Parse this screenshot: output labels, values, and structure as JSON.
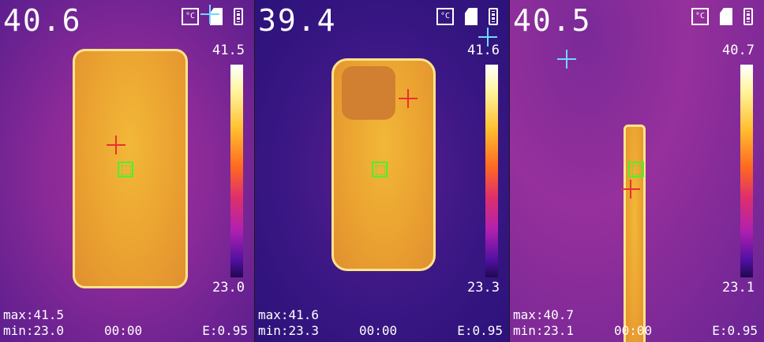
{
  "panels": [
    {
      "center_temp": "40.6",
      "scale_max": "41.5",
      "scale_min": "23.0",
      "max": "max:41.5",
      "min": "min:23.0",
      "time": "00:00",
      "emissivity": "E:0.95",
      "unit_icon": "°C"
    },
    {
      "center_temp": "39.4",
      "scale_max": "41.6",
      "scale_min": "23.3",
      "max": "max:41.6",
      "min": "min:23.3",
      "time": "00:00",
      "emissivity": "E:0.95",
      "unit_icon": "°C"
    },
    {
      "center_temp": "40.5",
      "scale_max": "40.7",
      "scale_min": "23.1",
      "max": "max:40.7",
      "min": "min:23.1",
      "time": "00:00",
      "emissivity": "E:0.95",
      "unit_icon": "°C"
    }
  ],
  "icons": [
    "celsius-icon",
    "sd-card-icon",
    "battery-icon"
  ],
  "colors": {
    "max_marker": "#e83030",
    "min_marker": "#70d8ff",
    "center_marker": "#4cf030"
  }
}
